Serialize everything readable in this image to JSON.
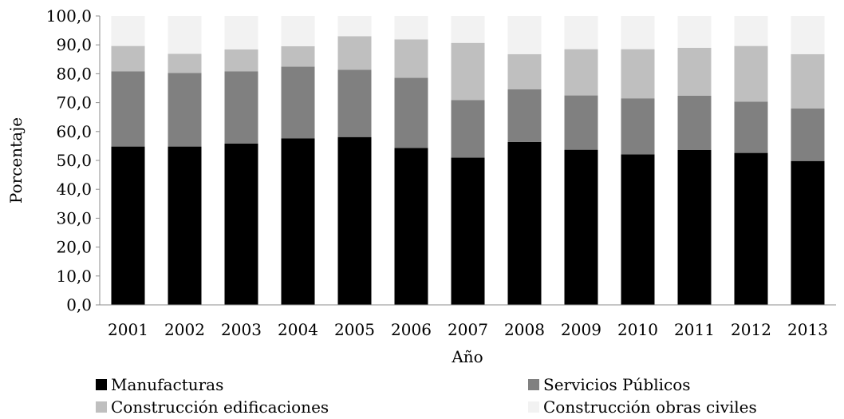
{
  "chart_data": {
    "type": "bar",
    "stacked": true,
    "categories": [
      "2001",
      "2002",
      "2003",
      "2004",
      "2005",
      "2006",
      "2007",
      "2008",
      "2009",
      "2010",
      "2011",
      "2012",
      "2013"
    ],
    "series": [
      {
        "name": "Manufacturas",
        "color": "#000000",
        "values": [
          54.8,
          54.8,
          55.8,
          57.6,
          58.1,
          54.3,
          51.0,
          56.4,
          53.7,
          52.1,
          53.6,
          52.6,
          49.8
        ]
      },
      {
        "name": "Servicios Públicos",
        "color": "#808080",
        "values": [
          26.0,
          25.5,
          25.0,
          24.9,
          23.3,
          24.3,
          19.9,
          18.2,
          18.8,
          19.4,
          18.8,
          17.7,
          18.2
        ]
      },
      {
        "name": "Construcción edificaciones",
        "color": "#bfbfbf",
        "values": [
          8.8,
          6.6,
          7.6,
          7.0,
          11.6,
          13.3,
          19.8,
          12.2,
          16.0,
          17.0,
          16.6,
          19.3,
          18.8
        ]
      },
      {
        "name": "Construcción obras civiles",
        "color": "#f2f2f2",
        "values": [
          10.4,
          13.1,
          11.6,
          10.5,
          7.0,
          8.1,
          9.3,
          13.2,
          11.5,
          11.5,
          11.0,
          10.4,
          13.2
        ]
      }
    ],
    "y_ticks": [
      "0,0",
      "10,0",
      "20,0",
      "30,0",
      "40,0",
      "50,0",
      "60,0",
      "70,0",
      "80,0",
      "90,0",
      "100,0"
    ],
    "ylim": [
      0,
      100
    ],
    "xlabel": "Año",
    "ylabel": "Porcentaje",
    "grid": false,
    "legend_position": "bottom"
  }
}
